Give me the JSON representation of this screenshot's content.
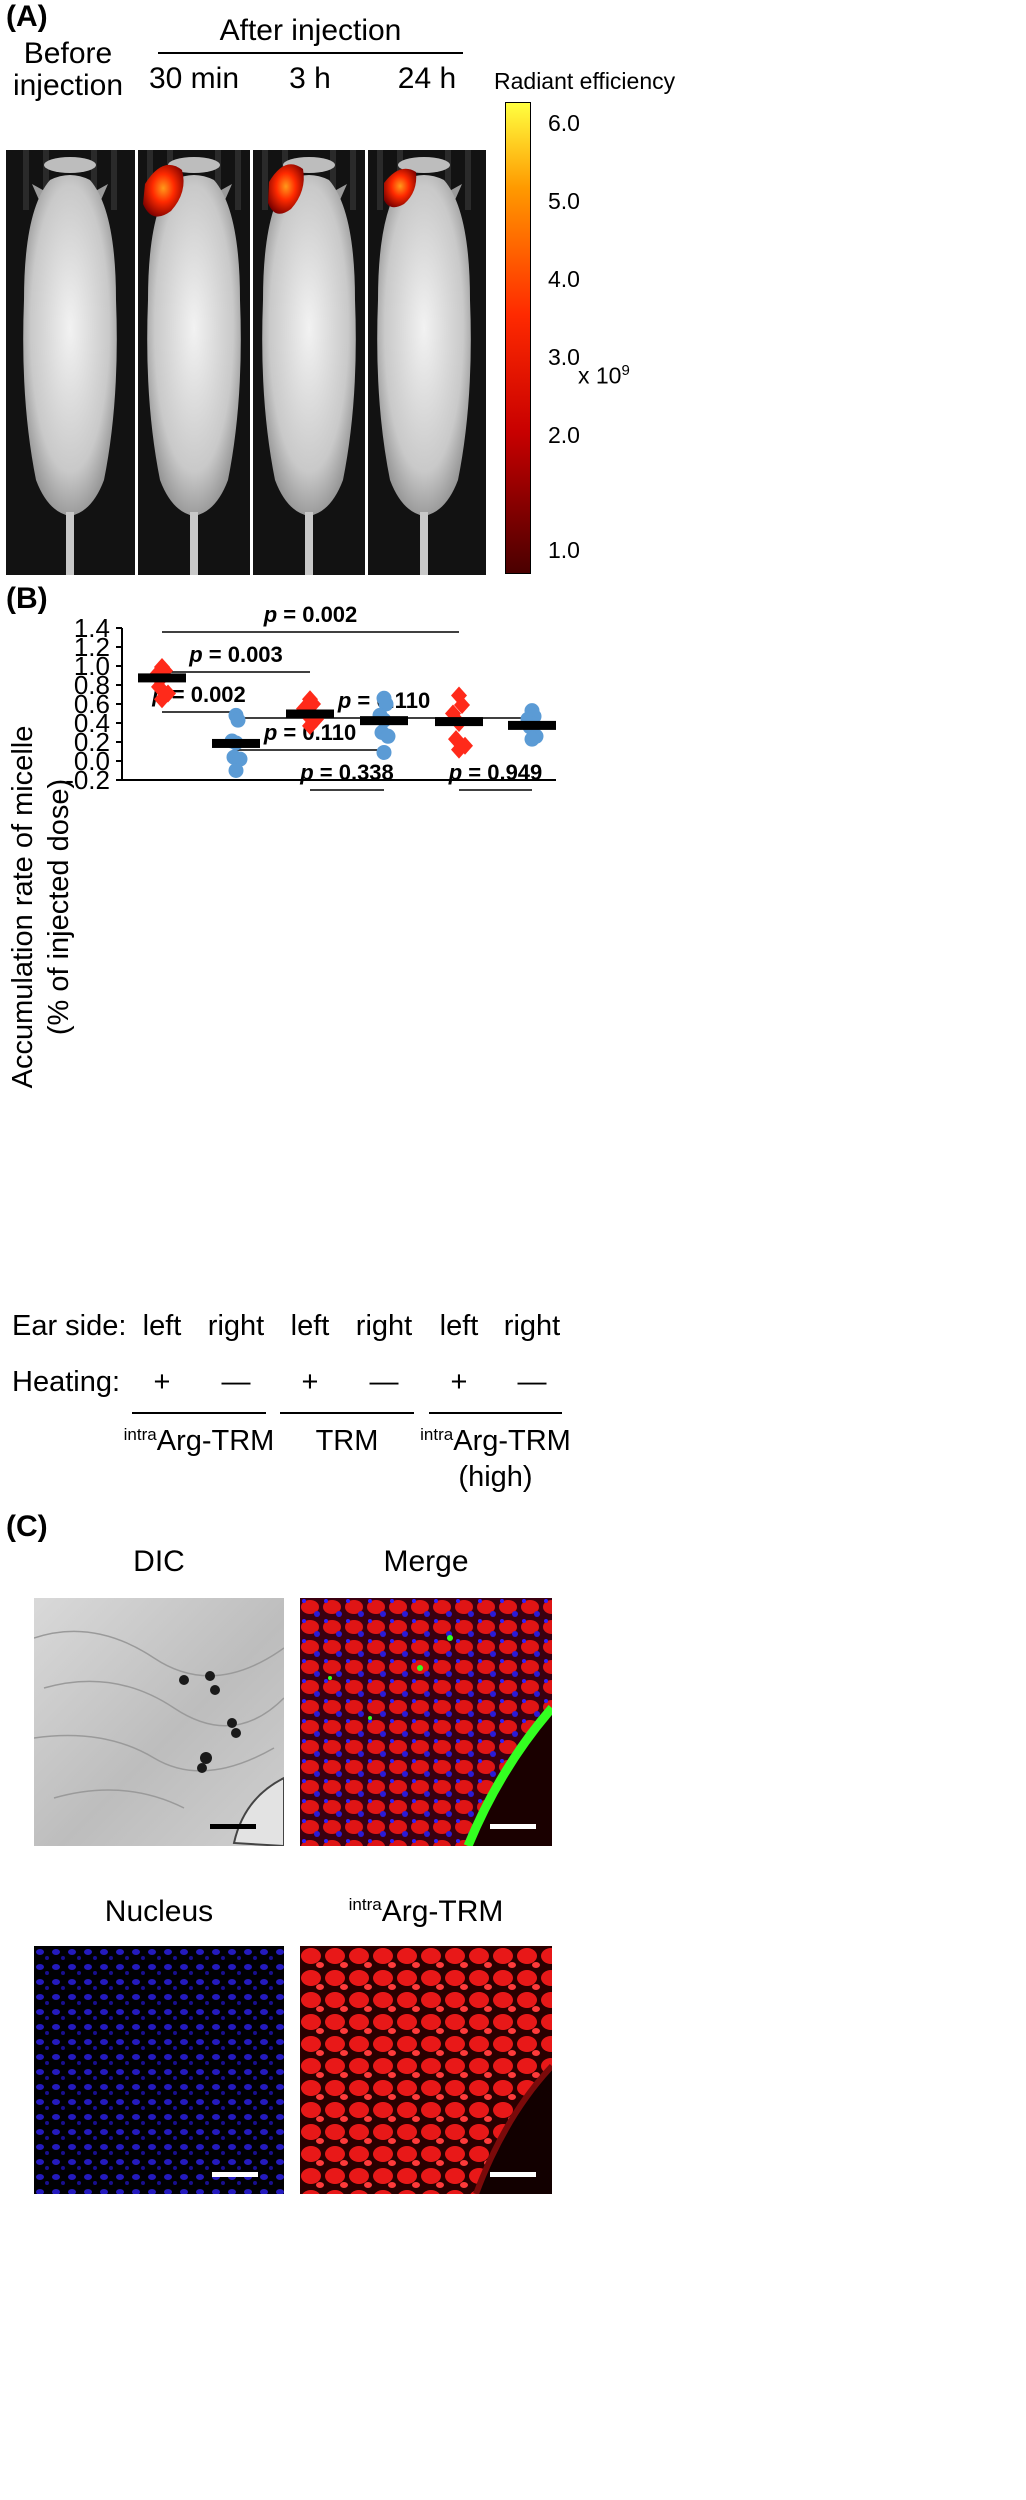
{
  "panels": {
    "a": "(A)",
    "b": "(B)",
    "c": "(C)"
  },
  "panel_a": {
    "before_label_line1": "Before",
    "before_label_line2": "injection",
    "after_label": "After injection",
    "time_labels": [
      "30 min",
      "3 h",
      "24 h"
    ],
    "colorbar_title": "Radiant efficiency",
    "colorbar_ticks": [
      "6.0",
      "5.0",
      "4.0",
      "3.0",
      "2.0",
      "1.0"
    ],
    "colorbar_exponent_base": "x 10",
    "colorbar_exponent_power": "9",
    "colorbar_colors": {
      "top": "#ffff40",
      "mid": "#ff2a00",
      "bottom": "#4a0000"
    }
  },
  "panel_c": {
    "titles": {
      "dic": "DIC",
      "merge": "Merge",
      "nucleus": "Nucleus",
      "arg_sup": "intra",
      "arg_main": "Arg-TRM"
    }
  },
  "chart_data": {
    "type": "scatter",
    "ylabel_line1": "Accumulation rate of micelle",
    "ylabel_line2": "(% of injected dose)",
    "ylim": [
      -0.2,
      1.4
    ],
    "yticks": [
      "1.4",
      "1.2",
      "1.0",
      "0.8",
      "0.6",
      "0.4",
      "0.2",
      "0.0",
      "-0.2"
    ],
    "row_labels": {
      "ear": "Ear side:",
      "heating": "Heating:"
    },
    "groups": [
      {
        "ear": "left",
        "heating": "+",
        "marker": "diamond",
        "color": "#ff2a1a",
        "values": [
          0.99,
          0.95,
          0.9,
          0.88,
          0.78,
          0.71,
          0.65
        ],
        "mean": 0.88
      },
      {
        "ear": "right",
        "heating": "—",
        "marker": "circle",
        "color": "#5b9bd5",
        "values": [
          0.48,
          0.43,
          0.21,
          0.19,
          0.04,
          0.02,
          -0.1
        ],
        "mean": 0.19
      },
      {
        "ear": "left",
        "heating": "+",
        "marker": "diamond",
        "color": "#ff2a1a",
        "values": [
          0.65,
          0.6,
          0.55,
          0.52,
          0.49,
          0.44,
          0.37
        ],
        "mean": 0.5
      },
      {
        "ear": "right",
        "heating": "—",
        "marker": "circle",
        "color": "#5b9bd5",
        "values": [
          0.66,
          0.6,
          0.48,
          0.43,
          0.3,
          0.26,
          0.09
        ],
        "mean": 0.43
      },
      {
        "ear": "left",
        "heating": "+",
        "marker": "diamond",
        "color": "#ff2a1a",
        "values": [
          0.69,
          0.59,
          0.5,
          0.4,
          0.23,
          0.16,
          0.12
        ],
        "mean": 0.42
      },
      {
        "ear": "right",
        "heating": "—",
        "marker": "circle",
        "color": "#5b9bd5",
        "values": [
          0.53,
          0.47,
          0.44,
          0.39,
          0.36,
          0.26,
          0.23
        ],
        "mean": 0.38
      }
    ],
    "group_labels": [
      {
        "sup": "intra",
        "main": "Arg-TRM",
        "line2": ""
      },
      {
        "sup": "",
        "main": "TRM",
        "line2": ""
      },
      {
        "sup": "intra",
        "main": "Arg-TRM",
        "line2": "(high)"
      }
    ],
    "comparisons": [
      {
        "from": 0,
        "to": 4,
        "p": "0.002"
      },
      {
        "from": 0,
        "to": 2,
        "p": "0.003"
      },
      {
        "from": 0,
        "to": 1,
        "p": "0.002"
      },
      {
        "from": 1,
        "to": 5,
        "p": "0.110"
      },
      {
        "from": 1,
        "to": 3,
        "p": "0.110"
      },
      {
        "from": 2,
        "to": 3,
        "p": "0.338"
      },
      {
        "from": 4,
        "to": 5,
        "p": "0.949"
      }
    ],
    "p_prefix": "p"
  }
}
